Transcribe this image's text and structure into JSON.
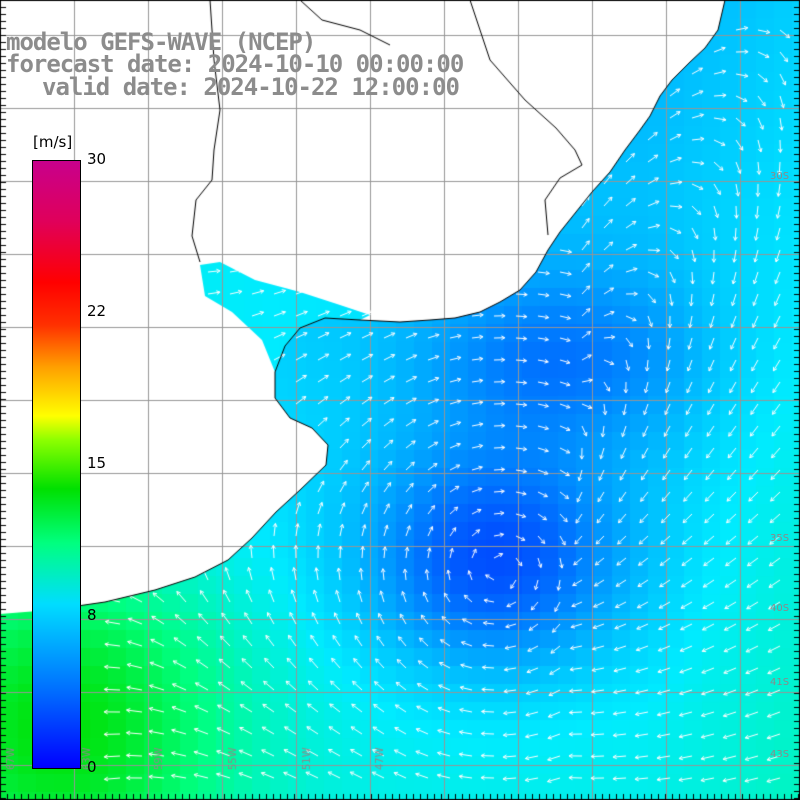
{
  "title": {
    "line1": "modelo GEFS-WAVE (NCEP)",
    "line2": "forecast date: 2024-10-10 00:00:00",
    "line3": "valid date: 2024-10-22 12:00:00"
  },
  "colorbar": {
    "unit": "[m/s]",
    "ticks": [
      {
        "label": "30",
        "value": 30
      },
      {
        "label": "22",
        "value": 22
      },
      {
        "label": "15",
        "value": 15
      },
      {
        "label": "8",
        "value": 8
      },
      {
        "label": "0",
        "value": 0
      }
    ],
    "colors": [
      "#0000ff",
      "#00ddff",
      "#00ff80",
      "#00e000",
      "#ffff00",
      "#ff0000",
      "#c8008c"
    ]
  },
  "map": {
    "lat_labels": [
      "30S",
      "35S",
      "40S",
      "41S",
      "43S"
    ],
    "lon_labels": [
      "67W",
      "63W",
      "59W",
      "55W",
      "51W",
      "47W"
    ],
    "colors": {
      "land": "#ffffff",
      "coastline": "#000000",
      "grid": "#969696",
      "vectors": "#ffffff",
      "field_low": "#0000ff",
      "field_mid": "#00ddff",
      "field_high": "#00e000"
    },
    "notes": "wind speed field with white direction arrows over ocean; coastline of Uruguay and Argentina (Rio de la Plata)"
  }
}
